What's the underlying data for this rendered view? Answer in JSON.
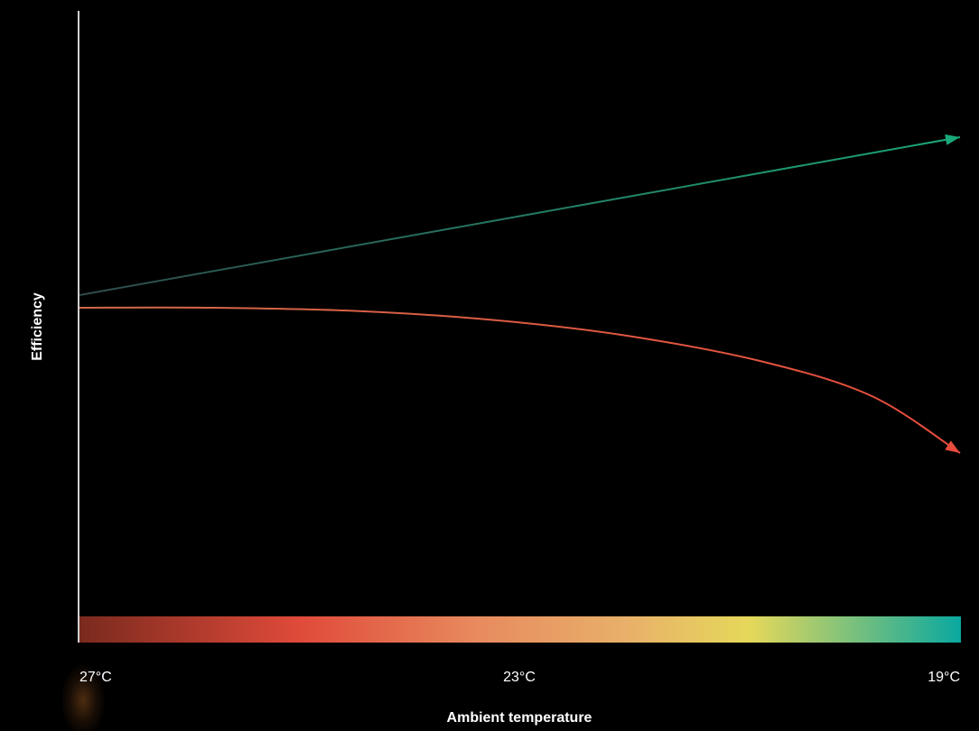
{
  "chart_data": {
    "type": "line",
    "title": "",
    "xlabel": "Ambient temperature",
    "ylabel": "Efficiency",
    "x_ticks": [
      "27°C",
      "23°C",
      "19°C"
    ],
    "x_values": [
      27,
      23,
      19
    ],
    "xlim": [
      27,
      19
    ],
    "ylim": [
      0,
      1
    ],
    "grid": false,
    "series": [
      {
        "color_start": "#2f4a4a",
        "color_end": "#1aa87a",
        "x": [
          27,
          19
        ],
        "y": [
          0.55,
          0.8
        ]
      },
      {
        "color_start": "#d06a4a",
        "color_end": "#e84c3c",
        "x": [
          27,
          25.8,
          24.5,
          23.2,
          22,
          20.8,
          19.8,
          19
        ],
        "y": [
          0.53,
          0.53,
          0.525,
          0.51,
          0.485,
          0.445,
          0.39,
          0.3
        ]
      }
    ],
    "color_scale": [
      "#7a2a1e",
      "#e04a3a",
      "#e88a5e",
      "#e8b06a",
      "#e6d85a",
      "#0aa8a0"
    ]
  }
}
